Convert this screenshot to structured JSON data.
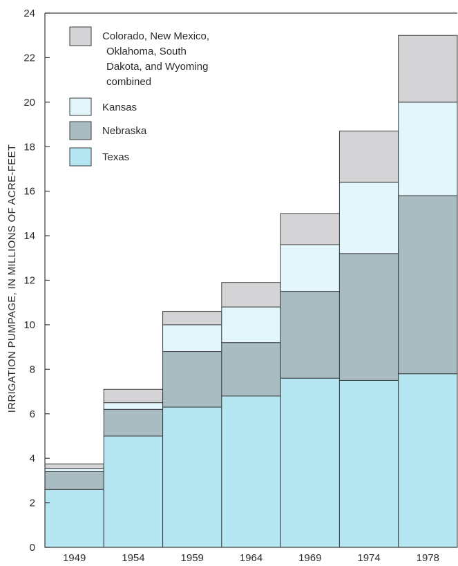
{
  "chart_data": {
    "type": "bar",
    "stacked": true,
    "title": "",
    "xlabel": "",
    "ylabel": "IRRIGATION PUMPAGE, IN MILLIONS OF ACRE-FEET",
    "ylim": [
      0,
      24
    ],
    "yticks": [
      0,
      2,
      4,
      6,
      8,
      10,
      12,
      14,
      16,
      18,
      20,
      22,
      24
    ],
    "categories": [
      "1949",
      "1954",
      "1959",
      "1964",
      "1969",
      "1974",
      "1978"
    ],
    "grid": false,
    "legend_position": "top-left",
    "series": [
      {
        "name": "Texas",
        "color": "#b5e6f2",
        "values": [
          2.6,
          5.0,
          6.3,
          6.8,
          7.6,
          7.5,
          7.8
        ]
      },
      {
        "name": "Nebraska",
        "color": "#a8bcc2",
        "values": [
          0.8,
          1.2,
          2.5,
          2.4,
          3.9,
          5.7,
          8.0
        ]
      },
      {
        "name": "Kansas",
        "color": "#e2f6fb",
        "values": [
          0.15,
          0.3,
          1.2,
          1.6,
          2.1,
          3.2,
          4.2
        ]
      },
      {
        "name": "Colorado, New Mexico, Oklahoma, South Dakota, and Wyoming combined",
        "color": "#d4d4d6",
        "values": [
          0.2,
          0.6,
          0.6,
          1.1,
          1.4,
          2.3,
          3.0
        ]
      }
    ],
    "legend": [
      {
        "lines": [
          "Colorado, New Mexico,",
          "Oklahoma, South",
          "Dakota, and Wyoming",
          "combined"
        ],
        "color": "#d4d4d6"
      },
      {
        "lines": [
          "Kansas"
        ],
        "color": "#e2f6fb"
      },
      {
        "lines": [
          "Nebraska"
        ],
        "color": "#a8bcc2"
      },
      {
        "lines": [
          "Texas"
        ],
        "color": "#b5e6f2"
      }
    ]
  }
}
